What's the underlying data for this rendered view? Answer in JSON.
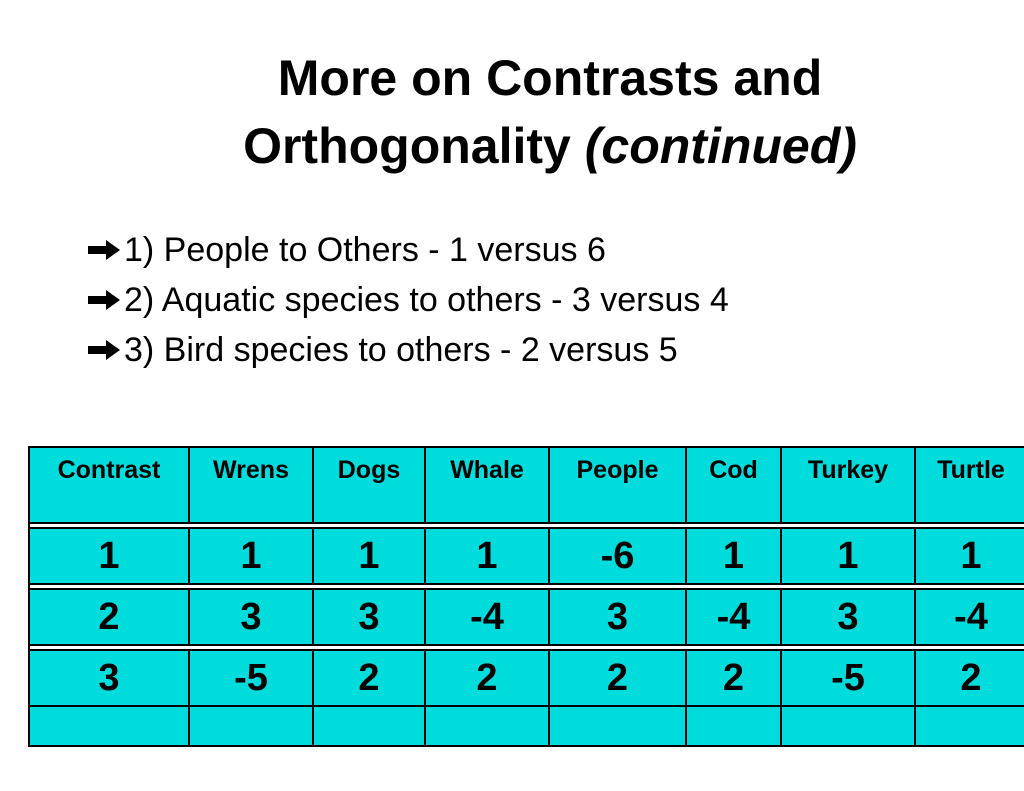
{
  "title": {
    "line1": "More on Contrasts and",
    "line2": "Orthogonality",
    "line2_italic": "(continued)"
  },
  "bullets": [
    "1) People to Others - 1 versus 6",
    "2) Aquatic species to others - 3 versus 4",
    "3) Bird species to others -  2 versus 5"
  ],
  "bullet_icon": "right-arrow-icon",
  "table": {
    "headers": [
      "Contrast",
      "Wrens",
      "Dogs",
      "Whale",
      "People",
      "Cod",
      "Turkey",
      "Turtle"
    ],
    "rows": [
      [
        "1",
        "1",
        "1",
        "1",
        "-6",
        "1",
        "1",
        "1"
      ],
      [
        "2",
        "3",
        "3",
        "-4",
        "3",
        "-4",
        "3",
        "-4"
      ],
      [
        "3",
        "-5",
        "2",
        "2",
        "2",
        "2",
        "-5",
        "2"
      ],
      [
        "",
        "",
        "",
        "",
        "",
        "",
        "",
        ""
      ]
    ],
    "fill_color": "#00dcdc"
  }
}
